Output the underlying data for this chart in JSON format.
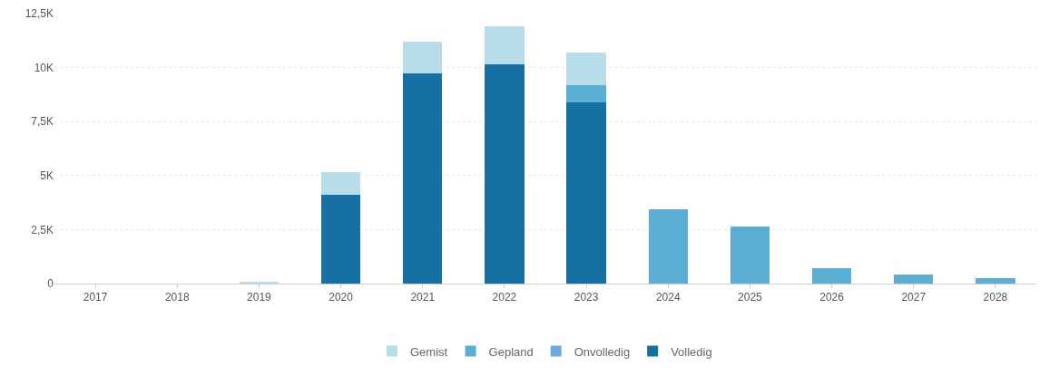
{
  "chart_data": {
    "type": "bar",
    "stacked": true,
    "categories": [
      "2017",
      "2018",
      "2019",
      "2020",
      "2021",
      "2022",
      "2023",
      "2024",
      "2025",
      "2026",
      "2027",
      "2028"
    ],
    "series": [
      {
        "name": "Volledig",
        "color": "#1670a3",
        "values": [
          0,
          0,
          0,
          4100,
          9750,
          10150,
          8400,
          0,
          0,
          0,
          0,
          0
        ]
      },
      {
        "name": "Onvolledig",
        "color": "#6fa8e0",
        "values": [
          0,
          0,
          0,
          0,
          0,
          0,
          0,
          0,
          0,
          0,
          0,
          0
        ]
      },
      {
        "name": "Gepland",
        "color": "#5aaed4",
        "values": [
          0,
          0,
          0,
          0,
          0,
          0,
          800,
          3450,
          2650,
          700,
          400,
          250
        ]
      },
      {
        "name": "Gemist",
        "color": "#b8dce8",
        "values": [
          0,
          0,
          100,
          1060,
          1450,
          1750,
          1500,
          0,
          0,
          0,
          0,
          0
        ]
      }
    ],
    "ylim": [
      0,
      12500
    ],
    "yticks": [
      {
        "value": 0,
        "label": "0"
      },
      {
        "value": 2500,
        "label": "2,5K"
      },
      {
        "value": 5000,
        "label": "5K"
      },
      {
        "value": 7500,
        "label": "7,5K"
      },
      {
        "value": 10000,
        "label": "10K"
      },
      {
        "value": 12500,
        "label": "12,5K"
      }
    ],
    "grid": "y",
    "legend": "bottom"
  }
}
